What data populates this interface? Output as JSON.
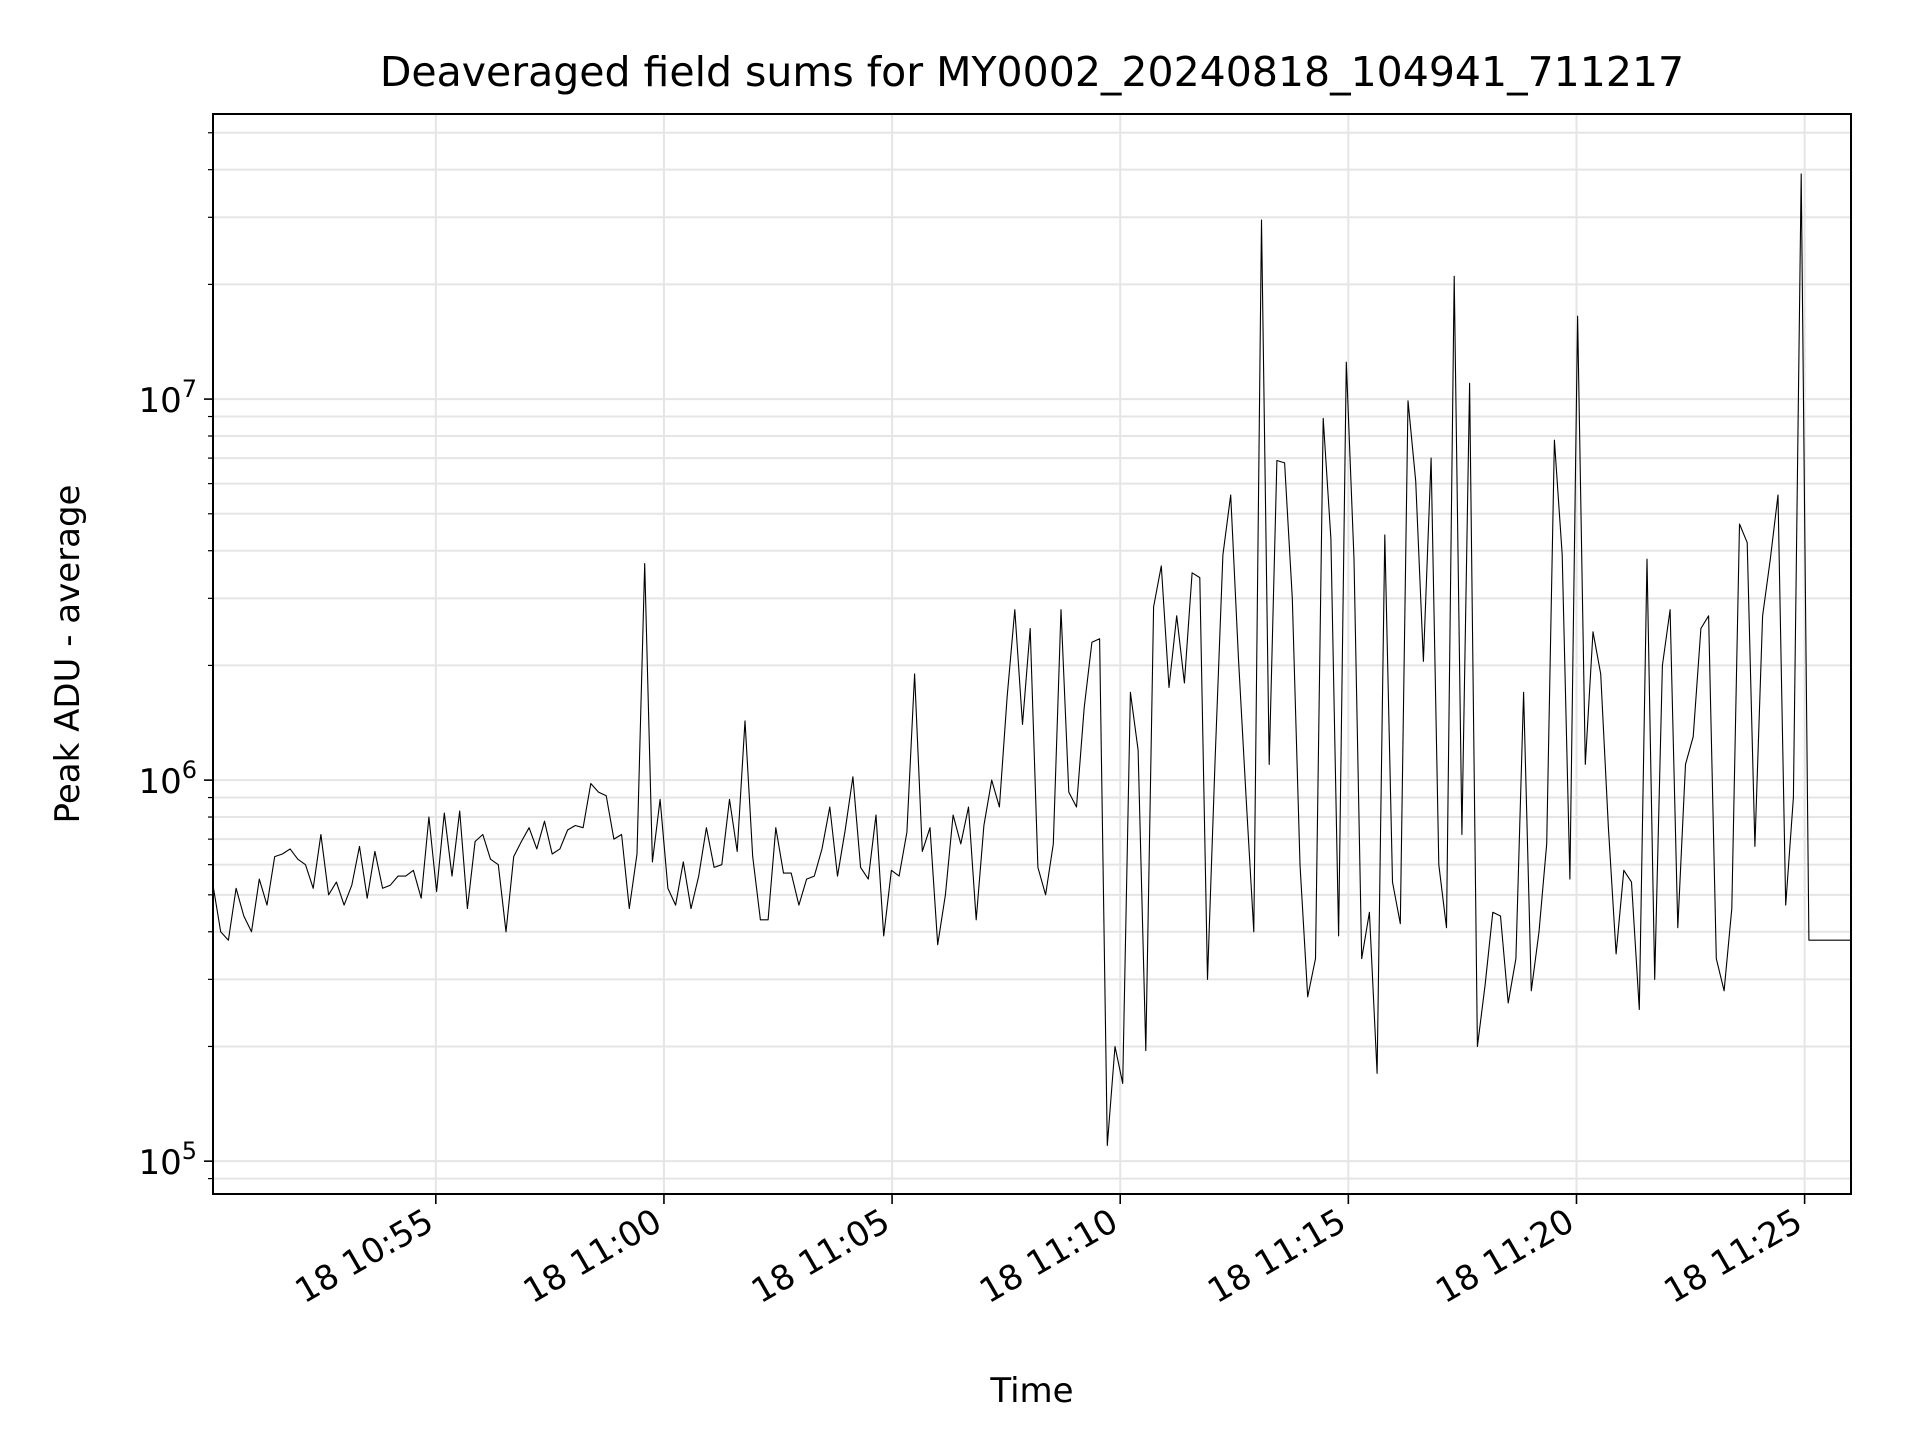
{
  "chart_data": {
    "type": "line",
    "title": "Deaveraged field sums for MY0002_20240818_104941_711217",
    "xlabel": "Time",
    "ylabel": "Peak ADU - average",
    "y_scale": "log",
    "ylim": [
      82000,
      56000000
    ],
    "xlim": [
      "2024-08-18 10:50:07",
      "2024-08-18 11:26:01"
    ],
    "grid": true,
    "legend": "none",
    "line_color": "#000000",
    "grid_color": "#e5e5e5",
    "x_ticks": [
      {
        "t": "2024-08-18 10:55:00",
        "label": "18 10:55"
      },
      {
        "t": "2024-08-18 11:00:00",
        "label": "18 11:00"
      },
      {
        "t": "2024-08-18 11:05:00",
        "label": "18 11:05"
      },
      {
        "t": "2024-08-18 11:10:00",
        "label": "18 11:10"
      },
      {
        "t": "2024-08-18 11:15:00",
        "label": "18 11:15"
      },
      {
        "t": "2024-08-18 11:20:00",
        "label": "18 11:20"
      },
      {
        "t": "2024-08-18 11:25:00",
        "label": "18 11:25"
      }
    ],
    "y_ticks": [
      {
        "value": 100000,
        "base": "10",
        "exp": "5"
      },
      {
        "value": 1000000,
        "base": "10",
        "exp": "6"
      },
      {
        "value": 10000000,
        "base": "10",
        "exp": "7"
      }
    ],
    "series": [
      {
        "start": "2024-08-18 10:50:07",
        "end": "2024-08-18 11:25:36",
        "values": [
          530000,
          400000,
          380000,
          520000,
          440000,
          400000,
          550000,
          470000,
          630000,
          640000,
          660000,
          620000,
          600000,
          520000,
          720000,
          500000,
          540000,
          470000,
          530000,
          670000,
          490000,
          650000,
          520000,
          530000,
          560000,
          560000,
          580000,
          490000,
          800000,
          510000,
          820000,
          560000,
          830000,
          460000,
          690000,
          720000,
          620000,
          600000,
          400000,
          630000,
          690000,
          750000,
          660000,
          780000,
          640000,
          660000,
          740000,
          760000,
          750000,
          980000,
          930000,
          910000,
          700000,
          720000,
          460000,
          640000,
          3700000,
          610000,
          890000,
          520000,
          470000,
          610000,
          460000,
          560000,
          750000,
          590000,
          600000,
          890000,
          650000,
          1430000,
          630000,
          430000,
          430000,
          750000,
          570000,
          570000,
          470000,
          550000,
          560000,
          660000,
          850000,
          560000,
          740000,
          1020000,
          590000,
          550000,
          810000,
          390000,
          580000,
          560000,
          730000,
          1900000,
          650000,
          750000,
          370000,
          500000,
          810000,
          680000,
          850000,
          430000,
          760000,
          1000000,
          850000,
          1650000,
          2800000,
          1400000,
          2500000,
          590000,
          500000,
          680000,
          2800000,
          930000,
          850000,
          1550000,
          2300000,
          2350000,
          110000,
          200000,
          160000,
          1700000,
          1200000,
          195000,
          2850000,
          3650000,
          1750000,
          2700000,
          1800000,
          3500000,
          3400000,
          300000,
          1150000,
          3900000,
          5600000,
          2100000,
          900000,
          400000,
          29500000,
          1100000,
          6900000,
          6800000,
          3000000,
          600000,
          270000,
          340000,
          8900000,
          4300000,
          390000,
          12500000,
          3800000,
          340000,
          450000,
          170000,
          4400000,
          540000,
          420000,
          9900000,
          6100000,
          2050000,
          7000000,
          600000,
          410000,
          21000000,
          720000,
          11000000,
          200000,
          290000,
          450000,
          440000,
          260000,
          340000,
          1700000,
          280000,
          400000,
          680000,
          7800000,
          3900000,
          550000,
          16500000,
          1100000,
          2450000,
          1900000,
          750000,
          350000,
          580000,
          540000,
          250000,
          3800000,
          300000,
          2000000,
          2800000,
          410000,
          1100000,
          1300000,
          2500000,
          2700000,
          340000,
          280000,
          460000,
          4700000,
          4200000,
          670000,
          2700000,
          3800000,
          5600000,
          470000,
          900000,
          39000000,
          380000,
          380000,
          380000,
          380000
        ]
      }
    ]
  }
}
